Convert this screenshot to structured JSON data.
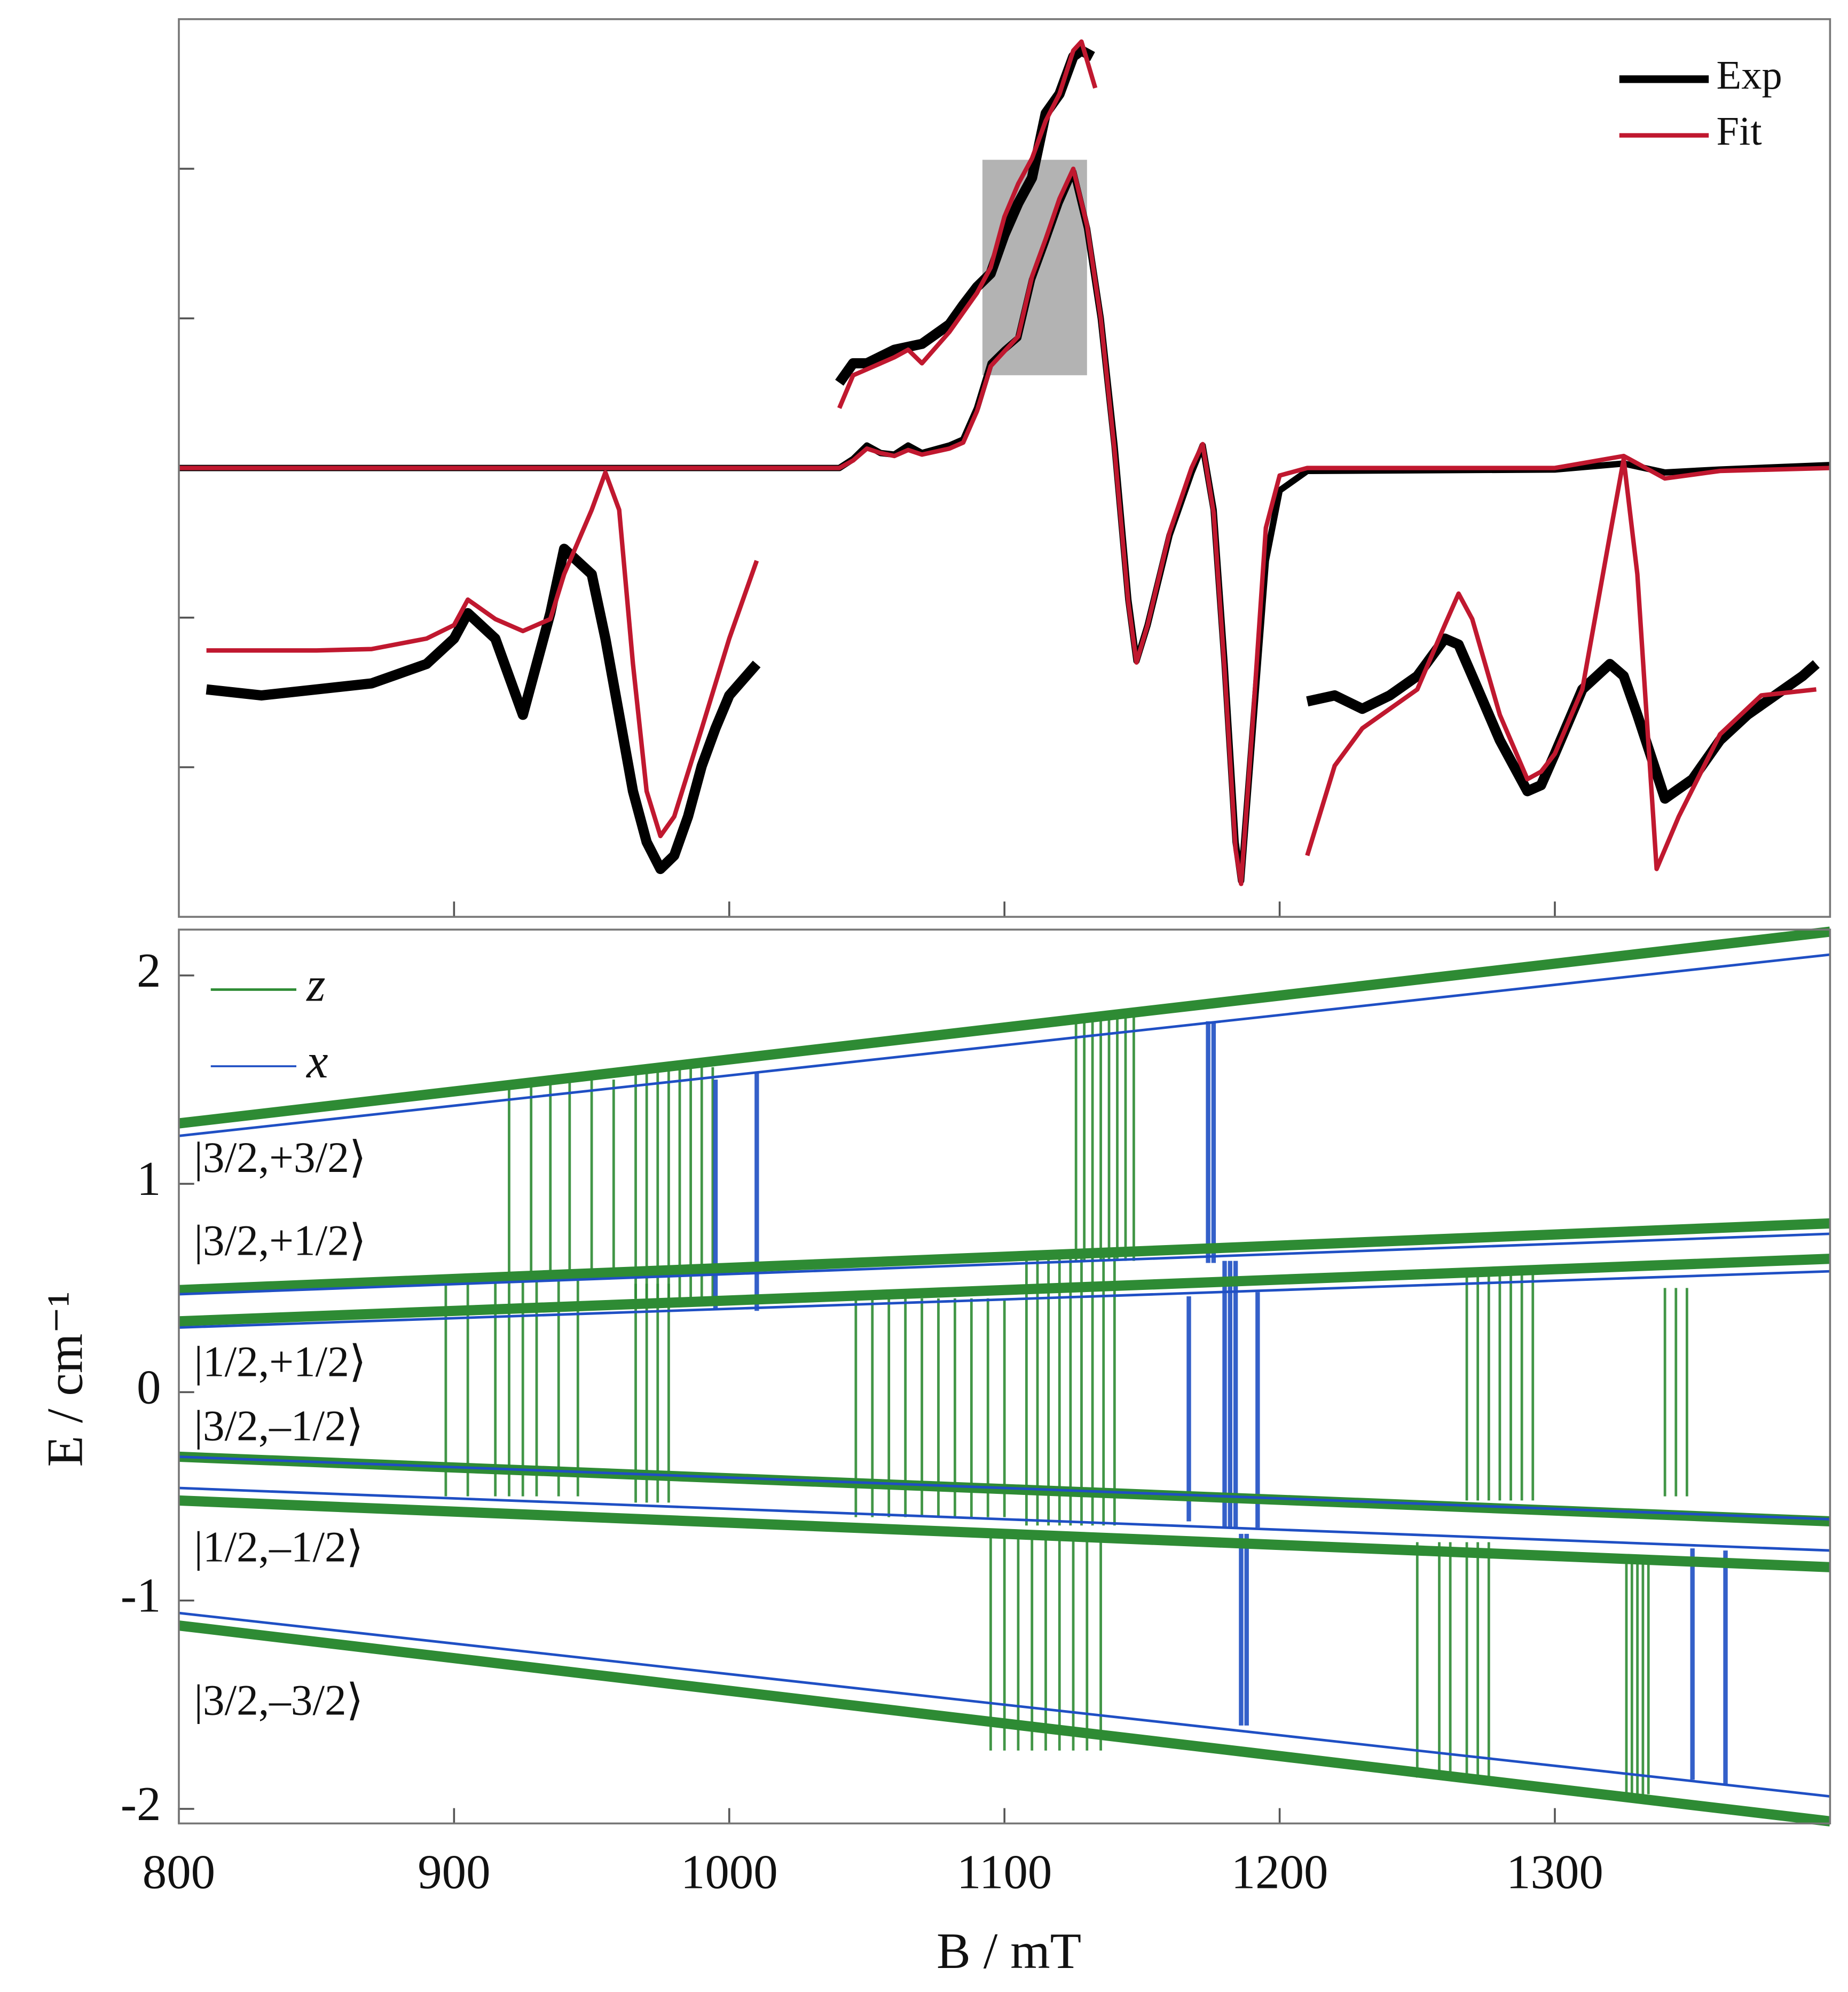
{
  "chart_data": [
    {
      "type": "line",
      "xlim": [
        800,
        1400
      ],
      "ylim": [
        -3,
        3
      ],
      "yticks": [
        -2,
        -1,
        1,
        2
      ],
      "legend": "upper right",
      "highlight": {
        "xlim": [
          1092,
          1130
        ],
        "ylim": [
          0.62,
          2.06
        ],
        "color": "#b3b3b3"
      },
      "series": [
        {
          "name": "Exp",
          "color": "#000000",
          "x": [
            800,
            1040,
            1045,
            1050,
            1055,
            1060,
            1065,
            1070,
            1080,
            1085,
            1090,
            1095,
            1100,
            1105,
            1110,
            1115,
            1120,
            1125,
            1130,
            1135,
            1140,
            1145,
            1148,
            1152,
            1160,
            1168,
            1172,
            1176,
            1180,
            1184,
            1186,
            1190,
            1195,
            1200,
            1210,
            1300,
            1325,
            1340,
            1360,
            1400
          ],
          "values": [
            0,
            0,
            0.06,
            0.15,
            0.1,
            0.09,
            0.15,
            0.1,
            0.15,
            0.19,
            0.4,
            0.7,
            0.79,
            0.87,
            1.26,
            1.51,
            1.77,
            1.98,
            1.6,
            1.0,
            0.15,
            -0.88,
            -1.29,
            -1.05,
            -0.45,
            -0.03,
            0.15,
            -0.28,
            -1.31,
            -2.5,
            -2.76,
            -1.8,
            -0.62,
            -0.15,
            -0.02,
            -0.01,
            0.03,
            -0.03,
            -0.01,
            0.02
          ]
        },
        {
          "name": "Fit",
          "color": "#c0182f",
          "x": [
            800,
            1040,
            1045,
            1050,
            1055,
            1060,
            1065,
            1070,
            1080,
            1085,
            1090,
            1095,
            1100,
            1105,
            1110,
            1115,
            1120,
            1125,
            1130,
            1135,
            1140,
            1145,
            1148,
            1152,
            1160,
            1168,
            1172,
            1176,
            1180,
            1184,
            1186,
            1190,
            1195,
            1200,
            1210,
            1300,
            1325,
            1340,
            1360,
            1400
          ],
          "values": [
            0,
            0,
            0.05,
            0.13,
            0.1,
            0.08,
            0.12,
            0.09,
            0.13,
            0.17,
            0.38,
            0.68,
            0.78,
            0.88,
            1.28,
            1.53,
            1.8,
            2.0,
            1.62,
            1.0,
            0.12,
            -0.9,
            -1.3,
            -1.05,
            -0.43,
            0,
            0.16,
            -0.3,
            -1.35,
            -2.55,
            -2.78,
            -1.75,
            -0.4,
            -0.05,
            0,
            0,
            0.08,
            -0.07,
            -0.02,
            0
          ]
        },
        {
          "color": "#000000",
          "x": [
            810,
            830,
            850,
            870,
            890,
            900,
            905,
            915,
            925,
            935,
            940,
            950,
            955,
            960,
            965,
            970,
            975,
            980,
            985,
            990,
            995,
            1000,
            1010
          ],
          "values": [
            -1.48,
            -1.52,
            -1.48,
            -1.44,
            -1.31,
            -1.14,
            -0.97,
            -1.14,
            -1.65,
            -0.97,
            -0.54,
            -0.71,
            -1.14,
            -1.65,
            -2.16,
            -2.5,
            -2.68,
            -2.59,
            -2.33,
            -1.99,
            -1.74,
            -1.52,
            -1.31
          ]
        },
        {
          "color": "#c0182f",
          "x": [
            810,
            830,
            850,
            870,
            890,
            900,
            905,
            915,
            925,
            935,
            940,
            950,
            955,
            960,
            965,
            970,
            975,
            980,
            990,
            1000,
            1010
          ],
          "values": [
            -1.22,
            -1.22,
            -1.22,
            -1.21,
            -1.14,
            -1.05,
            -0.88,
            -1.01,
            -1.09,
            -1.01,
            -0.71,
            -0.28,
            -0.03,
            -0.28,
            -1.31,
            -2.16,
            -2.46,
            -2.33,
            -1.74,
            -1.14,
            -0.62
          ]
        },
        {
          "color": "#000000",
          "x": [
            1040,
            1045,
            1050,
            1060,
            1070,
            1080,
            1085,
            1090,
            1095,
            1100,
            1105,
            1110,
            1115,
            1120,
            1125,
            1128,
            1132
          ],
          "values": [
            0.57,
            0.7,
            0.7,
            0.79,
            0.83,
            0.96,
            1.09,
            1.21,
            1.3,
            1.56,
            1.77,
            1.94,
            2.37,
            2.5,
            2.75,
            2.79,
            2.75
          ]
        },
        {
          "color": "#c0182f",
          "x": [
            1040,
            1045,
            1050,
            1060,
            1065,
            1070,
            1080,
            1090,
            1095,
            1100,
            1105,
            1110,
            1115,
            1120,
            1125,
            1128,
            1133
          ],
          "values": [
            0.4,
            0.62,
            0.66,
            0.74,
            0.79,
            0.7,
            0.91,
            1.17,
            1.34,
            1.68,
            1.9,
            2.07,
            2.32,
            2.5,
            2.79,
            2.85,
            2.54
          ]
        },
        {
          "color": "#000000",
          "x": [
            1210,
            1220,
            1230,
            1240,
            1250,
            1260,
            1265,
            1270,
            1280,
            1290,
            1295,
            1300,
            1310,
            1320,
            1325,
            1330,
            1340,
            1350,
            1360,
            1370,
            1380,
            1390,
            1395
          ],
          "values": [
            -1.56,
            -1.52,
            -1.61,
            -1.52,
            -1.39,
            -1.14,
            -1.18,
            -1.39,
            -1.82,
            -2.16,
            -2.12,
            -1.91,
            -1.48,
            -1.31,
            -1.39,
            -1.65,
            -2.21,
            -2.08,
            -1.82,
            -1.65,
            -1.52,
            -1.39,
            -1.31
          ]
        },
        {
          "color": "#c0182f",
          "x": [
            1210,
            1220,
            1230,
            1250,
            1260,
            1265,
            1270,
            1280,
            1290,
            1295,
            1300,
            1310,
            1320,
            1325,
            1330,
            1337,
            1345,
            1360,
            1375,
            1395
          ],
          "values": [
            -2.59,
            -1.99,
            -1.74,
            -1.48,
            -1.05,
            -0.84,
            -1.01,
            -1.65,
            -2.08,
            -2.03,
            -1.91,
            -1.48,
            -0.45,
            0.06,
            -0.71,
            -2.68,
            -2.33,
            -1.78,
            -1.52,
            -1.48
          ]
        }
      ]
    },
    {
      "type": "energy-levels",
      "xlabel": "B / mT",
      "ylabel": "E / cm⁻¹",
      "xlim": [
        800,
        1400
      ],
      "xticks": [
        800,
        900,
        1000,
        1100,
        1200,
        1300
      ],
      "ylim": [
        -2.07,
        2.22
      ],
      "yticks": [
        -2,
        -1,
        0,
        1,
        2
      ],
      "legend": "upper left",
      "level_x": [
        800,
        1400
      ],
      "annotations": [
        "|3/2,+3/2⟩",
        "|3/2,+1/2⟩",
        "|1/2,+1/2⟩",
        "|3/2,–1/2⟩",
        "|1/2,–1/2⟩",
        "|3/2,–3/2⟩"
      ],
      "series": [
        {
          "name": "z",
          "color": "#2e8b34",
          "levels": [
            [
              1.29,
              2.21
            ],
            [
              0.49,
              0.81
            ],
            [
              0.34,
              0.64
            ],
            [
              -0.31,
              -0.62
            ],
            [
              -0.52,
              -0.84
            ],
            [
              -1.12,
              -2.06
            ]
          ],
          "transitions": [
            [
              920,
              0.53,
              1.46
            ],
            [
              928,
              0.54,
              1.47
            ],
            [
              935,
              0.54,
              1.48
            ],
            [
              942,
              0.55,
              1.49
            ],
            [
              950,
              0.55,
              1.5
            ],
            [
              958,
              0.56,
              1.5
            ],
            [
              966,
              0.45,
              1.56
            ],
            [
              970,
              0.45,
              1.56
            ],
            [
              974,
              0.45,
              1.56
            ],
            [
              978,
              0.45,
              1.56
            ],
            [
              982,
              0.45,
              1.56
            ],
            [
              986,
              0.45,
              1.56
            ],
            [
              990,
              0.45,
              1.56
            ],
            [
              994,
              0.45,
              1.56
            ],
            [
              1126,
              0.63,
              1.8
            ],
            [
              1129,
              0.63,
              1.8
            ],
            [
              1132,
              0.63,
              1.8
            ],
            [
              1135,
              0.63,
              1.8
            ],
            [
              1138,
              0.63,
              1.8
            ],
            [
              1141,
              0.63,
              1.8
            ],
            [
              1144,
              0.63,
              1.8
            ],
            [
              1147,
              0.63,
              1.8
            ],
            [
              897,
              -0.5,
              0.55
            ],
            [
              905,
              -0.5,
              0.55
            ],
            [
              915,
              -0.5,
              0.55
            ],
            [
              920,
              -0.5,
              0.55
            ],
            [
              925,
              -0.5,
              0.55
            ],
            [
              930,
              -0.5,
              0.55
            ],
            [
              938,
              -0.5,
              0.55
            ],
            [
              945,
              -0.5,
              0.55
            ],
            [
              966,
              -0.53,
              0.52
            ],
            [
              970,
              -0.53,
              0.52
            ],
            [
              974,
              -0.53,
              0.52
            ],
            [
              978,
              -0.53,
              0.52
            ],
            [
              1046,
              -0.6,
              0.45
            ],
            [
              1052,
              -0.6,
              0.45
            ],
            [
              1058,
              -0.6,
              0.45
            ],
            [
              1064,
              -0.6,
              0.45
            ],
            [
              1070,
              -0.6,
              0.45
            ],
            [
              1076,
              -0.6,
              0.45
            ],
            [
              1082,
              -0.6,
              0.45
            ],
            [
              1088,
              -0.6,
              0.45
            ],
            [
              1094,
              -0.6,
              0.45
            ],
            [
              1100,
              -0.6,
              0.45
            ],
            [
              1108,
              -0.64,
              0.65
            ],
            [
              1112,
              -0.64,
              0.65
            ],
            [
              1116,
              -0.64,
              0.65
            ],
            [
              1120,
              -0.64,
              0.65
            ],
            [
              1124,
              -0.64,
              0.65
            ],
            [
              1128,
              -0.64,
              0.65
            ],
            [
              1132,
              -0.64,
              0.65
            ],
            [
              1136,
              -0.64,
              0.65
            ],
            [
              1140,
              -0.64,
              0.65
            ],
            [
              1268,
              -0.52,
              0.58
            ],
            [
              1272,
              -0.52,
              0.58
            ],
            [
              1276,
              -0.52,
              0.58
            ],
            [
              1280,
              -0.52,
              0.58
            ],
            [
              1284,
              -0.52,
              0.58
            ],
            [
              1288,
              -0.52,
              0.58
            ],
            [
              1292,
              -0.52,
              0.58
            ],
            [
              1340,
              -0.5,
              0.5
            ],
            [
              1344,
              -0.5,
              0.5
            ],
            [
              1348,
              -0.5,
              0.5
            ],
            [
              1095,
              -1.72,
              -0.7
            ],
            [
              1100,
              -1.72,
              -0.7
            ],
            [
              1105,
              -1.72,
              -0.7
            ],
            [
              1110,
              -1.72,
              -0.7
            ],
            [
              1115,
              -1.72,
              -0.7
            ],
            [
              1120,
              -1.72,
              -0.7
            ],
            [
              1125,
              -1.72,
              -0.7
            ],
            [
              1130,
              -1.72,
              -0.7
            ],
            [
              1135,
              -1.72,
              -0.7
            ],
            [
              1250,
              -1.85,
              -0.72
            ],
            [
              1258,
              -1.85,
              -0.72
            ],
            [
              1262,
              -1.85,
              -0.72
            ],
            [
              1268,
              -1.85,
              -0.72
            ],
            [
              1272,
              -1.85,
              -0.72
            ],
            [
              1276,
              -1.85,
              -0.72
            ],
            [
              1326,
              -1.93,
              -0.8
            ],
            [
              1328,
              -1.93,
              -0.8
            ],
            [
              1330,
              -1.93,
              -0.8
            ],
            [
              1332,
              -1.93,
              -0.8
            ],
            [
              1334,
              -1.93,
              -0.8
            ]
          ]
        },
        {
          "name": "x",
          "color": "#1f4fc4",
          "levels": [
            [
              1.23,
              2.1
            ],
            [
              0.47,
              0.76
            ],
            [
              0.31,
              0.58
            ],
            [
              -0.31,
              -0.61
            ],
            [
              -0.46,
              -0.76
            ],
            [
              -1.06,
              -1.94
            ]
          ],
          "transitions": [
            [
              995,
              0.4,
              1.5
            ],
            [
              1010,
              0.39,
              1.53
            ],
            [
              1174,
              0.62,
              1.78
            ],
            [
              1176,
              0.62,
              1.78
            ],
            [
              1167,
              -0.62,
              0.46
            ],
            [
              1180,
              -0.65,
              0.63
            ],
            [
              1182,
              -0.65,
              0.63
            ],
            [
              1184,
              -0.65,
              0.63
            ],
            [
              1192,
              -0.65,
              0.48
            ],
            [
              1186,
              -1.6,
              -0.68
            ],
            [
              1188,
              -1.6,
              -0.68
            ],
            [
              1350,
              -1.86,
              -0.75
            ],
            [
              1362,
              -1.88,
              -0.76
            ]
          ]
        }
      ]
    }
  ]
}
